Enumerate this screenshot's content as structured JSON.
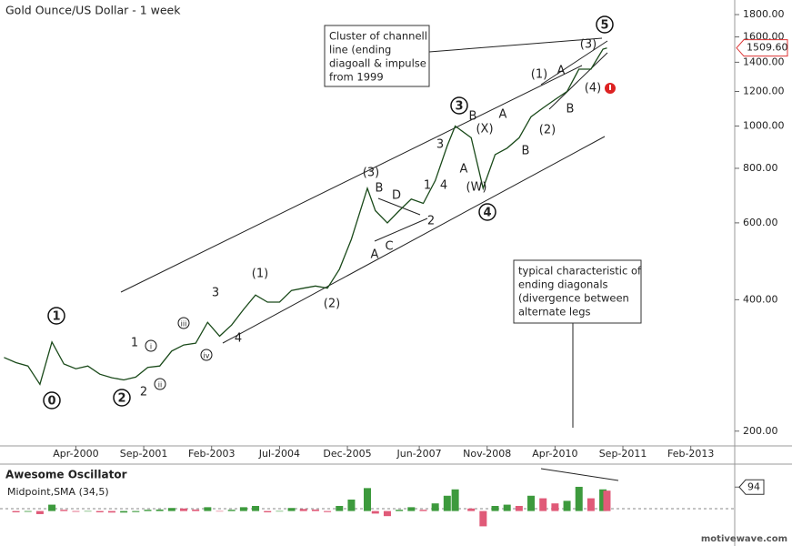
{
  "chart_data": [
    {
      "type": "line",
      "title": "Gold Ounce/US Dollar - 1 week",
      "log_scale": true,
      "grid": false,
      "color": "#1a4a1a",
      "x": [
        "Oct-1998",
        "Jan-1999",
        "Apr-1999",
        "Jul-1999",
        "Oct-1999",
        "Jan-2000",
        "Apr-2000",
        "Jul-2000",
        "Oct-2000",
        "Jan-2001",
        "Apr-2001",
        "Jul-2001",
        "Oct-2001",
        "Jan-2002",
        "Apr-2002",
        "Jul-2002",
        "Oct-2002",
        "Jan-2003",
        "Apr-2003",
        "Jul-2003",
        "Oct-2003",
        "Jan-2004",
        "Apr-2004",
        "Jul-2004",
        "Oct-2004",
        "Jan-2005",
        "Apr-2005",
        "Jul-2005",
        "Oct-2005",
        "Jan-2006",
        "May-2006",
        "Jul-2006",
        "Oct-2006",
        "Jan-2007",
        "Apr-2007",
        "Jul-2007",
        "Oct-2007",
        "Jan-2008",
        "Mar-2008",
        "Jul-2008",
        "Oct-2008",
        "Jan-2009",
        "Apr-2009",
        "Jul-2009",
        "Oct-2009",
        "Jan-2010",
        "Apr-2010",
        "Jul-2010",
        "Oct-2010",
        "Jan-2011",
        "Apr-2011",
        "May-2011"
      ],
      "series": [
        {
          "name": "Gold Ounce/US Dollar",
          "color": "#1a4a1a",
          "values": [
            295,
            287,
            282,
            256,
            320,
            285,
            278,
            282,
            270,
            265,
            262,
            266,
            280,
            282,
            305,
            315,
            318,
            355,
            330,
            350,
            380,
            410,
            395,
            395,
            420,
            425,
            430,
            425,
            470,
            550,
            720,
            640,
            600,
            640,
            680,
            665,
            750,
            900,
            1000,
            940,
            720,
            860,
            890,
            940,
            1050,
            1100,
            1150,
            1200,
            1350,
            1350,
            1500,
            1509.6
          ]
        }
      ],
      "xlim": [
        "Sep-1998",
        "Jan-2014"
      ],
      "xticks": [
        "Apr-2000",
        "Sep-2001",
        "Feb-2003",
        "Jul-2004",
        "Dec-2005",
        "Jun-2007",
        "Nov-2008",
        "Apr-2010",
        "Sep-2011",
        "Feb-2013"
      ],
      "ylim": [
        185,
        1944
      ],
      "yticks": [
        {
          "value": 200,
          "label": "200.00"
        },
        {
          "value": 400,
          "label": "400.00"
        },
        {
          "value": 600,
          "label": "600.00"
        },
        {
          "value": 800,
          "label": "800.00"
        },
        {
          "value": 1000,
          "label": "1000.00"
        },
        {
          "value": 1200,
          "label": "1200.00"
        },
        {
          "value": 1400,
          "label": "1400.00"
        },
        {
          "value": 1600,
          "label": "1600.00"
        },
        {
          "value": 1800,
          "label": "1800.00"
        }
      ],
      "price_tag": {
        "value": 1509.6,
        "label": "1509.60"
      },
      "annotations": [
        "0",
        "1",
        "2",
        "3",
        "4",
        "5",
        "i",
        "ii",
        "iii",
        "iv",
        "1",
        "2",
        "3",
        "4",
        "(1)",
        "(2)",
        "(3)",
        "B",
        "D",
        "A",
        "C",
        "1",
        "4",
        "2",
        "3",
        "B",
        "A",
        "(X)",
        "(W)",
        "A",
        "B",
        "(1)",
        "A",
        "(2)",
        "B",
        "(4)",
        "(3)"
      ],
      "notes": [
        [
          "Cluster of channell",
          "line (ending",
          "diagoall & impulse",
          "from 1999"
        ],
        [
          "typical characteristic of",
          "ending diagonals",
          "(divergence between",
          "alternate legs"
        ]
      ],
      "watermark": "motivewave.com"
    },
    {
      "type": "bar",
      "title": "Awesome Oscillator",
      "subtitle": "Midpoint,SMA (34,5)",
      "x": [
        "Oct-1998",
        "Jan-1999",
        "Apr-1999",
        "Jul-1999",
        "Oct-1999",
        "Jan-2000",
        "Apr-2000",
        "Jul-2000",
        "Oct-2000",
        "Jan-2001",
        "Apr-2001",
        "Jul-2001",
        "Oct-2001",
        "Jan-2002",
        "Apr-2002",
        "Jul-2002",
        "Oct-2002",
        "Jan-2003",
        "Apr-2003",
        "Jul-2003",
        "Oct-2003",
        "Jan-2004",
        "Apr-2004",
        "Jul-2004",
        "Oct-2004",
        "Jan-2005",
        "Apr-2005",
        "Jul-2005",
        "Oct-2005",
        "Jan-2006",
        "May-2006",
        "Jul-2006",
        "Oct-2006",
        "Jan-2007",
        "Apr-2007",
        "Jul-2007",
        "Oct-2007",
        "Jan-2008",
        "Mar-2008",
        "Jul-2008",
        "Oct-2008",
        "Jan-2009",
        "Apr-2009",
        "Jul-2009",
        "Oct-2009",
        "Jan-2010",
        "Apr-2010",
        "Jul-2010",
        "Oct-2010",
        "Jan-2011",
        "Apr-2011",
        "May-2011"
      ],
      "values": [
        0,
        -5,
        -3,
        -12,
        25,
        5,
        -3,
        -2,
        -5,
        -6,
        -6,
        -4,
        5,
        6,
        12,
        10,
        6,
        15,
        -2,
        5,
        15,
        20,
        -5,
        -2,
        12,
        8,
        6,
        -4,
        20,
        45,
        90,
        -10,
        -20,
        5,
        15,
        5,
        30,
        60,
        85,
        10,
        -60,
        20,
        25,
        20,
        60,
        50,
        30,
        40,
        95,
        50,
        85,
        80
      ],
      "colors": [
        "#3d9a3d",
        "#e05a78"
      ],
      "ylim": [
        -130,
        177
      ],
      "yticks": [
        94
      ]
    }
  ]
}
